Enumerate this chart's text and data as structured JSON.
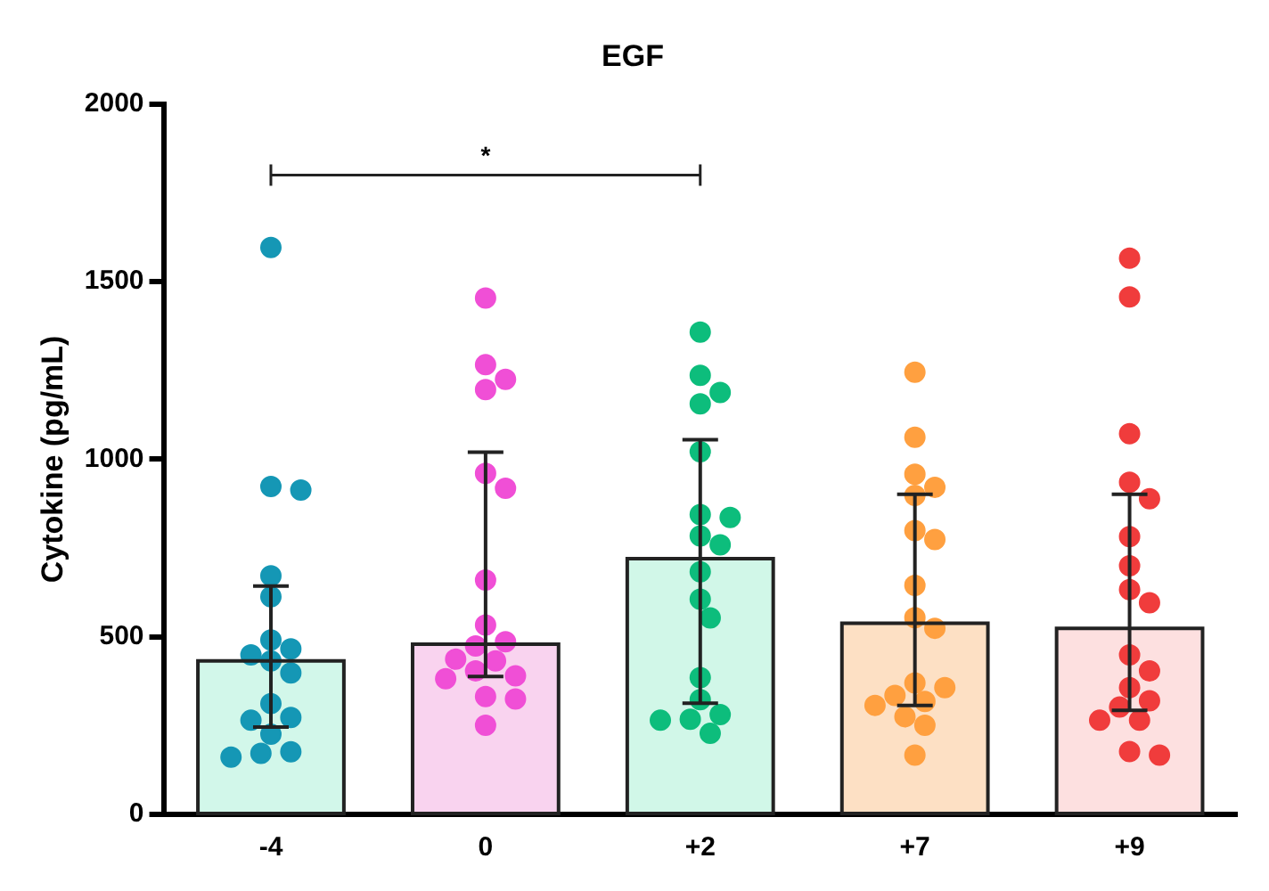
{
  "chart_data": {
    "type": "bar",
    "title": "EGF",
    "ylabel": "Cytokine (pg/mL)",
    "categories": [
      "-4",
      "0",
      "+2",
      "+7",
      "+9"
    ],
    "ylim": [
      0,
      2000
    ],
    "yticks": [
      0,
      500,
      1000,
      1500,
      2000
    ],
    "grid": false,
    "legend": false,
    "marker": "circle",
    "annotations": [
      "*"
    ],
    "series": [
      {
        "type": "bar",
        "values": [
          432,
          479,
          720,
          538,
          524
        ],
        "colors": [
          "#d2f7ea",
          "#f9d3ef",
          "#d1f7e8",
          "#fde0c4",
          "#fde0e0"
        ],
        "errors": [
          [
            246,
            643
          ],
          [
            388,
            1020
          ],
          [
            313,
            1055
          ],
          [
            307,
            901
          ],
          [
            293,
            901
          ]
        ]
      },
      {
        "type": "scatter",
        "color": "#1597b5",
        "x": [
          "-4",
          "-4",
          "-4",
          "-4",
          "-4",
          "-4",
          "-4",
          "-4",
          "-4",
          "-4",
          "-4",
          "-4",
          "-4",
          "-4",
          "-4",
          "-4",
          "-4"
        ],
        "values": [
          1596,
          923,
          913,
          672,
          613,
          491,
          466,
          449,
          432,
          398,
          312,
          273,
          265,
          226,
          176,
          172,
          161
        ]
      },
      {
        "type": "scatter",
        "color": "#f04fd6",
        "x": [
          "0",
          "0",
          "0",
          "0",
          "0",
          "0",
          "0",
          "0",
          "0",
          "0",
          "0",
          "0",
          "0",
          "0",
          "0",
          "0",
          "0",
          "0"
        ],
        "values": [
          1454,
          1266,
          1225,
          1196,
          960,
          918,
          660,
          533,
          486,
          474,
          437,
          432,
          404,
          390,
          382,
          332,
          325,
          251
        ]
      },
      {
        "type": "scatter",
        "color": "#0dbd7c",
        "x": [
          "+2",
          "+2",
          "+2",
          "+2",
          "+2",
          "+2",
          "+2",
          "+2",
          "+2",
          "+2",
          "+2",
          "+2",
          "+2",
          "+2",
          "+2",
          "+2",
          "+2",
          "+2"
        ],
        "values": [
          1358,
          1236,
          1188,
          1156,
          1021,
          844,
          836,
          784,
          759,
          683,
          606,
          553,
          385,
          323,
          281,
          268,
          265,
          228
        ]
      },
      {
        "type": "scatter",
        "color": "#ffa040",
        "x": [
          "+7",
          "+7",
          "+7",
          "+7",
          "+7",
          "+7",
          "+7",
          "+7",
          "+7",
          "+7",
          "+7",
          "+7",
          "+7",
          "+7",
          "+7",
          "+7",
          "+7",
          "+7"
        ],
        "values": [
          1245,
          1062,
          958,
          921,
          898,
          799,
          774,
          645,
          554,
          524,
          370,
          357,
          335,
          318,
          307,
          275,
          251,
          167
        ]
      },
      {
        "type": "scatter",
        "color": "#f03c3c",
        "x": [
          "+9",
          "+9",
          "+9",
          "+9",
          "+9",
          "+9",
          "+9",
          "+9",
          "+9",
          "+9",
          "+9",
          "+9",
          "+9",
          "+9",
          "+9",
          "+9",
          "+9",
          "+9"
        ],
        "values": [
          1566,
          1457,
          1072,
          935,
          889,
          782,
          700,
          633,
          596,
          449,
          404,
          357,
          320,
          302,
          265,
          265,
          177,
          167
        ]
      }
    ]
  }
}
